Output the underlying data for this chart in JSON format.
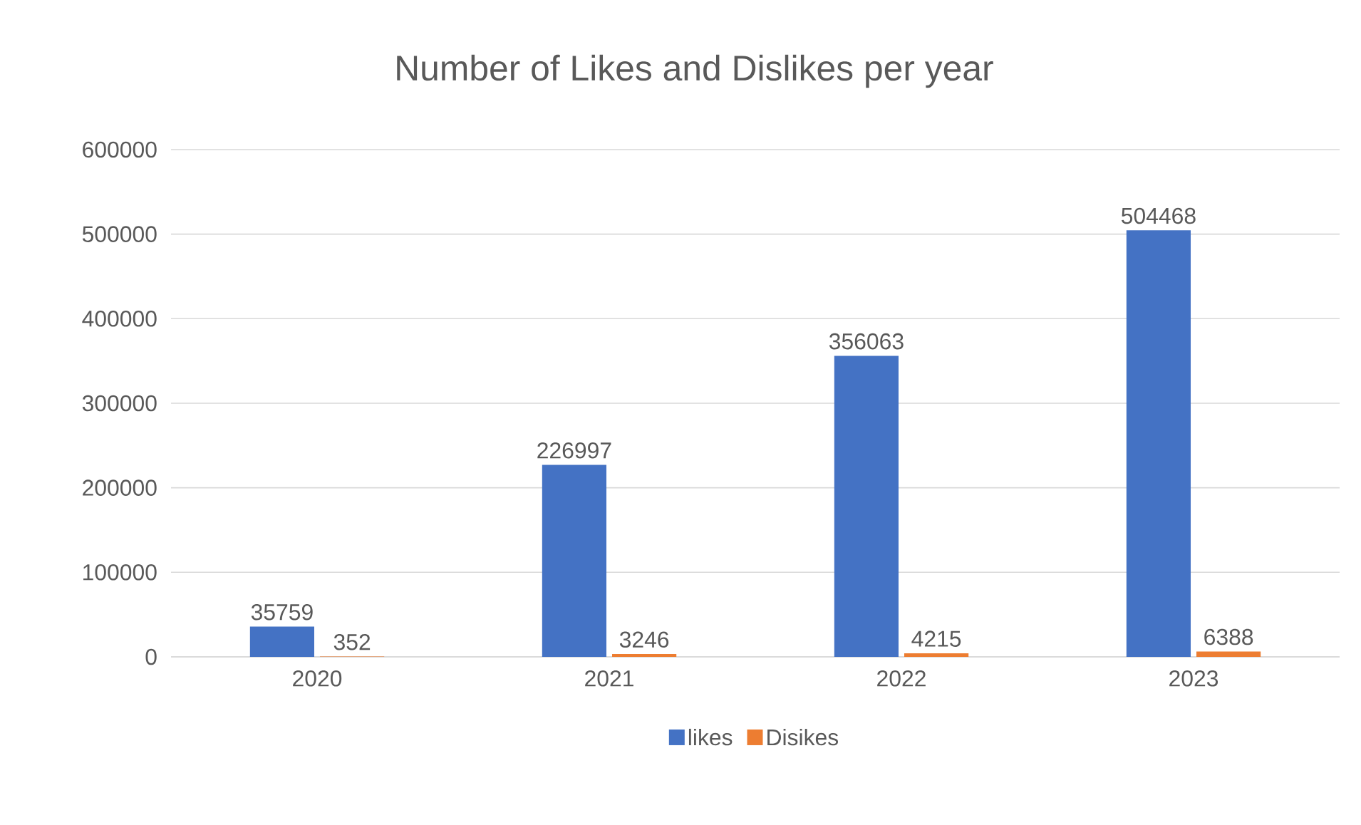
{
  "chart_data": {
    "type": "bar",
    "title": "Number of Likes and Dislikes per year",
    "categories": [
      "2020",
      "2021",
      "2022",
      "2023"
    ],
    "series": [
      {
        "name": "likes",
        "color": "#4472c4",
        "values": [
          35759,
          226997,
          356063,
          504468
        ]
      },
      {
        "name": "Disikes",
        "color": "#ed7d31",
        "values": [
          352,
          3246,
          4215,
          6388
        ]
      }
    ],
    "ylim": [
      0,
      600000
    ],
    "yticks": [
      0,
      100000,
      200000,
      300000,
      400000,
      500000,
      600000
    ],
    "grid": "y",
    "legend": "bottom",
    "data_labels": true
  }
}
